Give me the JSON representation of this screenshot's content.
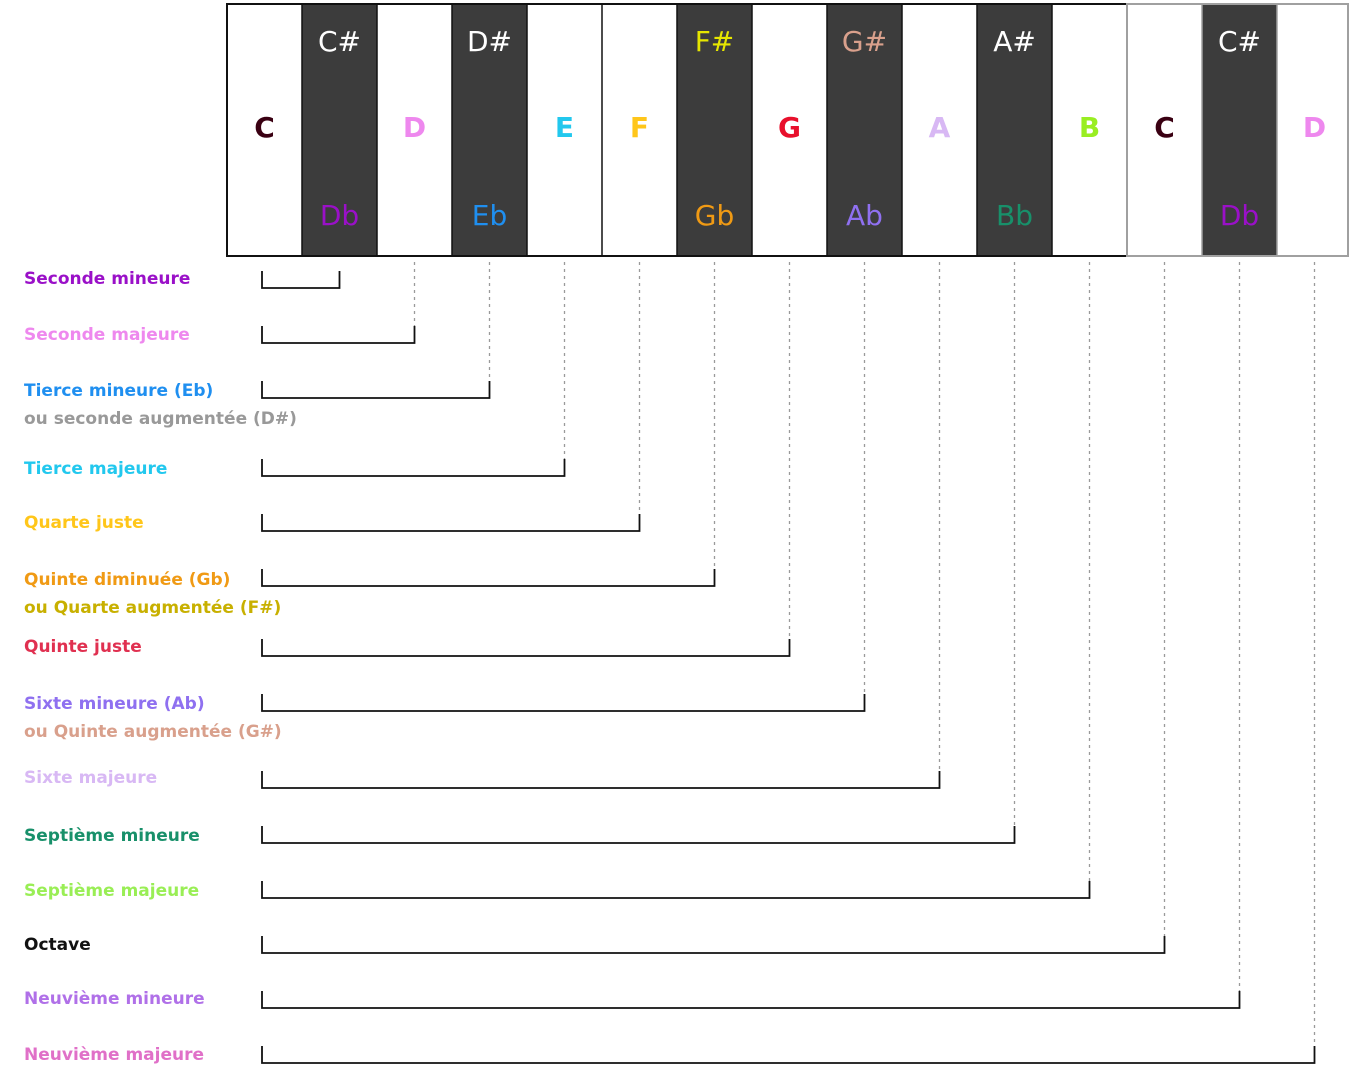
{
  "keys": [
    {
      "type": "white",
      "main": "C",
      "color": "#3a0012"
    },
    {
      "type": "black",
      "top": "C#",
      "top_color": "#ffffff",
      "bottom": "Db",
      "bottom_color": "#9a10c8"
    },
    {
      "type": "white",
      "main": "D",
      "color": "#ee88ee"
    },
    {
      "type": "black",
      "top": "D#",
      "top_color": "#ffffff",
      "bottom": "Eb",
      "bottom_color": "#1f8ff0"
    },
    {
      "type": "white",
      "main": "E",
      "color": "#22c8ee"
    },
    {
      "type": "white",
      "main": "F",
      "color": "#ffc61a"
    },
    {
      "type": "black",
      "top": "F#",
      "top_color": "#e6e600",
      "bottom": "Gb",
      "bottom_color": "#f09a14"
    },
    {
      "type": "white",
      "main": "G",
      "color": "#e8102c"
    },
    {
      "type": "black",
      "top": "G#",
      "top_color": "#d9a08c",
      "bottom": "Ab",
      "bottom_color": "#8f70f0"
    },
    {
      "type": "white",
      "main": "A",
      "color": "#d8b8f4"
    },
    {
      "type": "black",
      "top": "A#",
      "top_color": "#ffffff",
      "bottom": "Bb",
      "bottom_color": "#18906a"
    },
    {
      "type": "white",
      "main": "B",
      "color": "#99ee22"
    },
    {
      "type": "white",
      "main": "C",
      "color": "#3a0012"
    },
    {
      "type": "black",
      "top": "C#",
      "top_color": "#ffffff",
      "bottom": "Db",
      "bottom_color": "#9a10c8"
    },
    {
      "type": "white",
      "main": "D",
      "color": "#ee88ee"
    }
  ],
  "intervals": [
    {
      "label": "Seconde mineure",
      "color": "#9a10c8",
      "semitones": 1
    },
    {
      "label": "Seconde majeure",
      "color": "#ee88ee",
      "semitones": 2
    },
    {
      "label": "Tierce mineure (Eb)",
      "color": "#1f8ff0",
      "label2": "ou seconde augmentée (D#)",
      "color2": "#999999",
      "semitones": 3
    },
    {
      "label": "Tierce majeure",
      "color": "#22c8ee",
      "semitones": 4
    },
    {
      "label": "Quarte juste",
      "color": "#ffc61a",
      "semitones": 5
    },
    {
      "label": "Quinte diminuée (Gb)",
      "color": "#f09a14",
      "label2": "ou Quarte augmentée (F#)",
      "color2": "#c8b000",
      "semitones": 6
    },
    {
      "label": "Quinte juste",
      "color": "#e03050",
      "semitones": 7
    },
    {
      "label": "Sixte mineure (Ab)",
      "color": "#8f70f0",
      "label2": "ou Quinte augmentée (G#)",
      "color2": "#d9a08c",
      "semitones": 8
    },
    {
      "label": "Sixte majeure",
      "color": "#d8b8f4",
      "semitones": 9
    },
    {
      "label": "Septième mineure",
      "color": "#18906a",
      "semitones": 10
    },
    {
      "label": "Septième majeure",
      "color": "#99ee55",
      "semitones": 11
    },
    {
      "label": "Octave",
      "color": "#111111",
      "semitones": 12
    },
    {
      "label": "Neuvième mineure",
      "color": "#b070e8",
      "semitones": 13
    },
    {
      "label": "Neuvième majeure",
      "color": "#e070c8",
      "semitones": 14
    }
  ]
}
